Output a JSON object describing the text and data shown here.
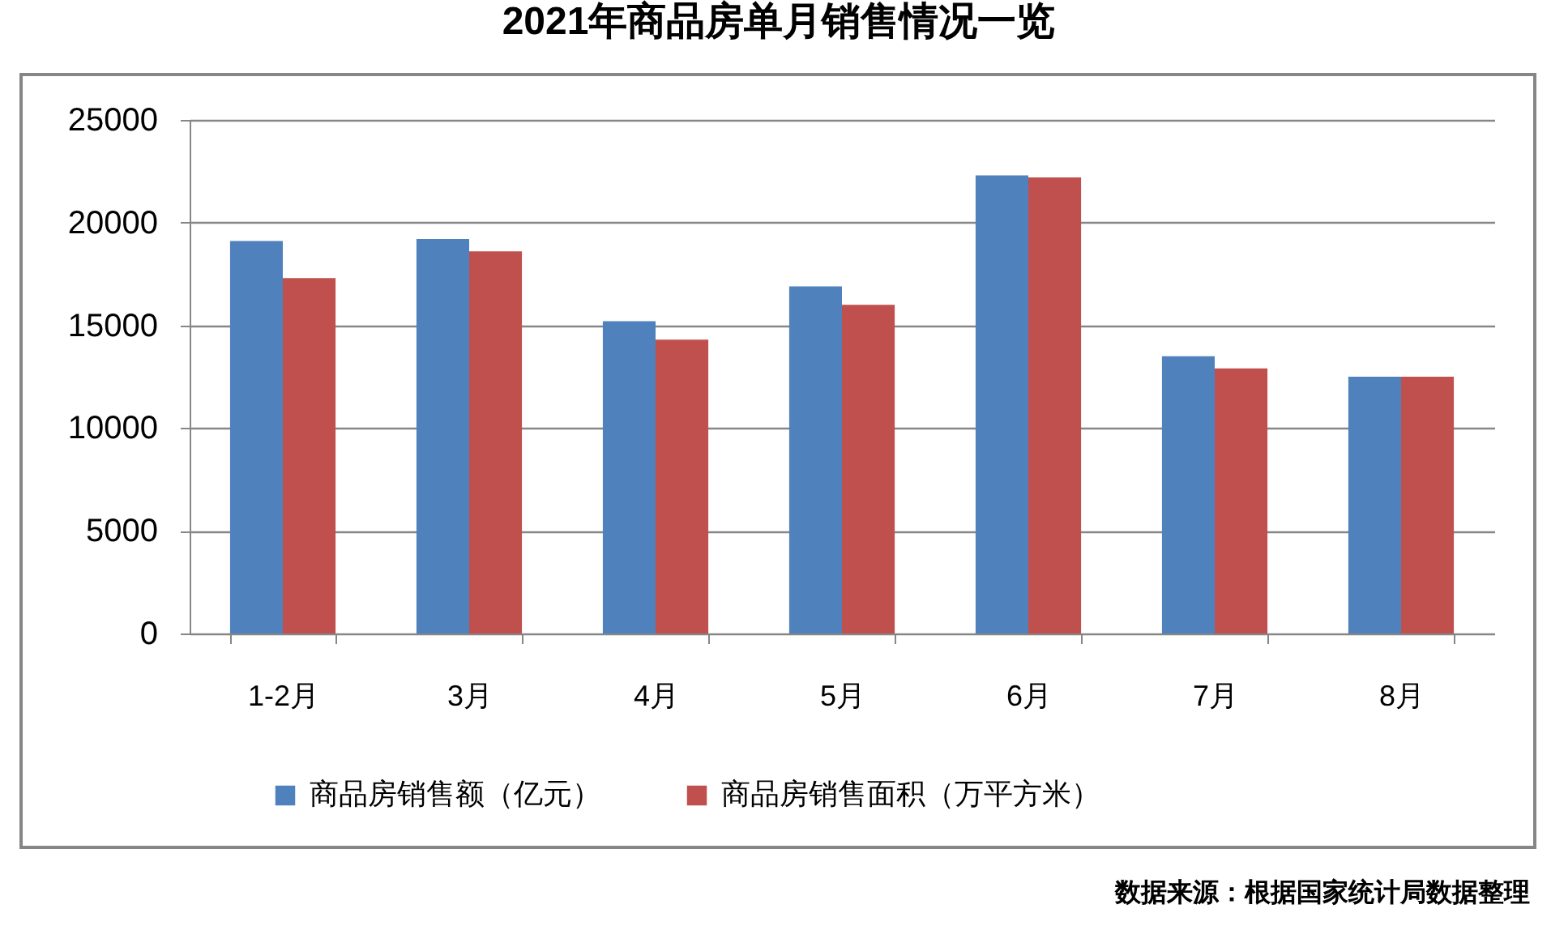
{
  "chart_data": {
    "type": "bar",
    "title": "2021年商品房单月销售情况一览",
    "categories": [
      "1-2月",
      "3月",
      "4月",
      "5月",
      "6月",
      "7月",
      "8月"
    ],
    "series": [
      {
        "name": "商品房销售额（亿元）",
        "color": "#4f81bd",
        "values": [
          19100,
          19200,
          15200,
          16900,
          22300,
          13500,
          12500
        ]
      },
      {
        "name": "商品房销售面积（万平方米）",
        "color": "#c0504d",
        "values": [
          17300,
          18600,
          14300,
          16000,
          22200,
          12900,
          12500
        ]
      }
    ],
    "ylim": [
      0,
      25000
    ],
    "yticks": [
      0,
      5000,
      10000,
      15000,
      20000,
      25000
    ],
    "grid": "y",
    "legend": "bottom",
    "annotations": [
      "数据来源：根据国家统计局数据整理"
    ]
  }
}
